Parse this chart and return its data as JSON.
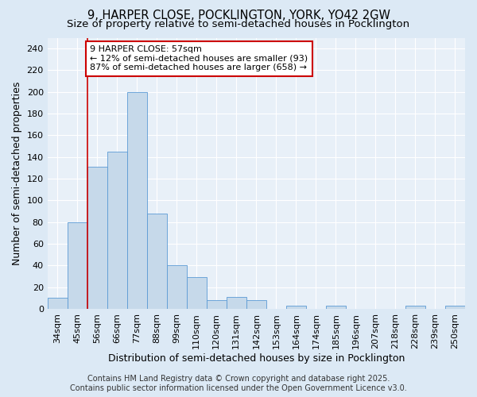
{
  "title": "9, HARPER CLOSE, POCKLINGTON, YORK, YO42 2GW",
  "subtitle": "Size of property relative to semi-detached houses in Pocklington",
  "xlabel": "Distribution of semi-detached houses by size in Pocklington",
  "ylabel": "Number of semi-detached properties",
  "categories": [
    "34sqm",
    "45sqm",
    "56sqm",
    "66sqm",
    "77sqm",
    "88sqm",
    "99sqm",
    "110sqm",
    "120sqm",
    "131sqm",
    "142sqm",
    "153sqm",
    "164sqm",
    "174sqm",
    "185sqm",
    "196sqm",
    "207sqm",
    "218sqm",
    "228sqm",
    "239sqm",
    "250sqm"
  ],
  "values": [
    10,
    80,
    131,
    145,
    200,
    88,
    40,
    29,
    8,
    11,
    8,
    0,
    3,
    0,
    3,
    0,
    0,
    0,
    3,
    0,
    3
  ],
  "bar_color": "#c6d9ea",
  "bar_edge_color": "#5b9bd5",
  "vline_color": "#cc0000",
  "vline_x": 1.5,
  "annotation_text": "9 HARPER CLOSE: 57sqm\n← 12% of semi-detached houses are smaller (93)\n87% of semi-detached houses are larger (658) →",
  "annotation_box_facecolor": "#ffffff",
  "annotation_box_edgecolor": "#cc0000",
  "footer_line1": "Contains HM Land Registry data © Crown copyright and database right 2025.",
  "footer_line2": "Contains public sector information licensed under the Open Government Licence v3.0.",
  "ylim": [
    0,
    250
  ],
  "yticks": [
    0,
    20,
    40,
    60,
    80,
    100,
    120,
    140,
    160,
    180,
    200,
    220,
    240
  ],
  "bg_color": "#dce9f5",
  "plot_bg_color": "#e8f0f8",
  "grid_color": "#ffffff",
  "title_fontsize": 10.5,
  "subtitle_fontsize": 9.5,
  "axis_label_fontsize": 9,
  "tick_fontsize": 8,
  "annotation_fontsize": 8,
  "footer_fontsize": 7
}
